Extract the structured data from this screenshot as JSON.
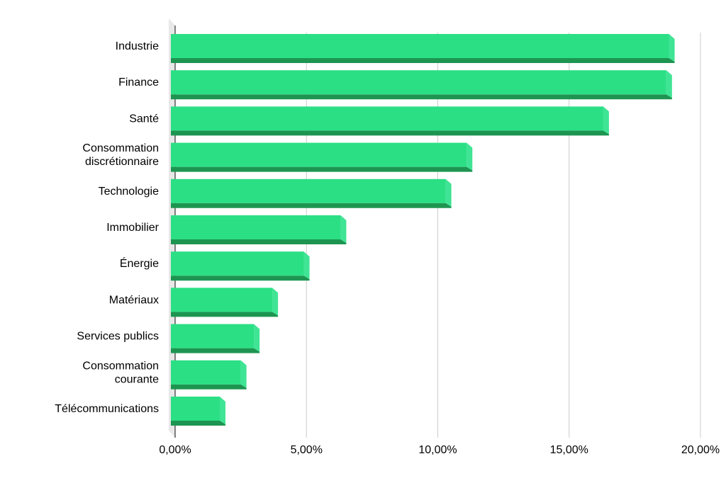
{
  "chart_data": {
    "type": "bar",
    "orientation": "horizontal",
    "style": "3d",
    "categories": [
      "Industrie",
      "Finance",
      "Santé",
      "Consommation discrétionnaire",
      "Technologie",
      "Immobilier",
      "Énergie",
      "Matériaux",
      "Services publics",
      "Consommation courante",
      "Télécommunications"
    ],
    "category_lines": [
      [
        "Industrie"
      ],
      [
        "Finance"
      ],
      [
        "Santé"
      ],
      [
        "Consommation",
        "discrétionnaire"
      ],
      [
        "Technologie"
      ],
      [
        "Immobilier"
      ],
      [
        "Énergie"
      ],
      [
        "Matériaux"
      ],
      [
        "Services publics"
      ],
      [
        "Consommation",
        "courante"
      ],
      [
        "Télécommunications"
      ]
    ],
    "values": [
      18.8,
      18.7,
      16.3,
      11.1,
      10.3,
      6.3,
      4.9,
      3.7,
      3.0,
      2.5,
      1.7
    ],
    "xlim": [
      0,
      20
    ],
    "xticks": [
      0,
      5,
      10,
      15,
      20
    ],
    "xtick_labels": [
      "0,00%",
      "5,00%",
      "10,00%",
      "15,00%",
      "20,00%"
    ],
    "title": "",
    "xlabel": "",
    "ylabel": "",
    "grid": "vertical",
    "legend": "none",
    "colors": {
      "bar_front": "#2bdf85",
      "bar_side": "#3fe494",
      "bar_bottom": "#1d9551",
      "gridline": "#cccccc",
      "wall": "#e8e8e8",
      "axis": "#333333",
      "text": "#000000"
    }
  }
}
